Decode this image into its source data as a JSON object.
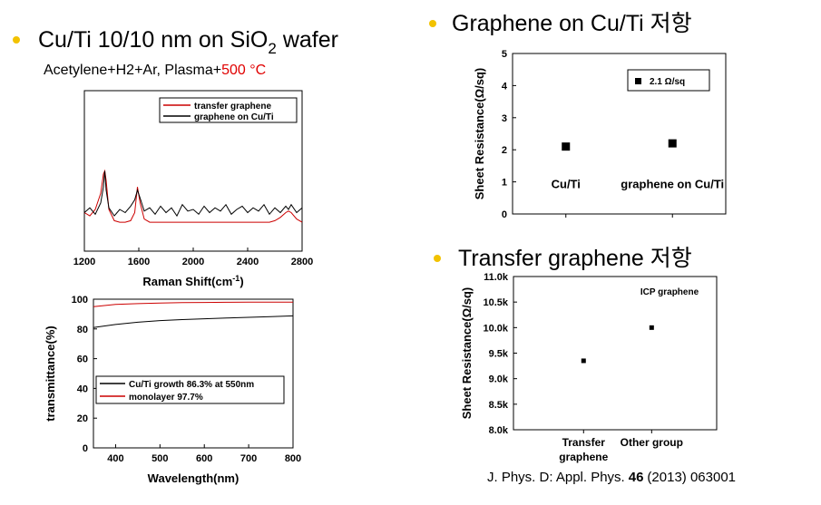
{
  "heading_1": {
    "text": "Cu/Ti 10/10 nm on SiO",
    "sub": "2",
    "tail": "wafer"
  },
  "subtitle": {
    "text": "Acetylene+H2+Ar, Plasma+",
    "highlight": "500 °C"
  },
  "heading_2": "Graphene on Cu/Ti 저항",
  "heading_3": "Transfer graphene 저항",
  "citation": {
    "text": "J. Phys. D: Appl. Phys.",
    "volume": "46",
    "tail": "(2013) 063001"
  },
  "chart_data": [
    {
      "type": "line",
      "xlabel": "Raman Shift(cm",
      "xlabel_sup": "-1",
      "xlabel_tail": ")",
      "xlim": [
        1200,
        2800
      ],
      "xticks": [
        1200,
        1600,
        2000,
        2400,
        2800
      ],
      "ylim": [
        0,
        100
      ],
      "x": [
        1200,
        1240,
        1280,
        1320,
        1340,
        1350,
        1360,
        1380,
        1420,
        1460,
        1500,
        1540,
        1570,
        1590,
        1610,
        1640,
        1680,
        1720,
        1760,
        1800,
        1840,
        1880,
        1920,
        1960,
        2000,
        2040,
        2080,
        2120,
        2160,
        2200,
        2240,
        2280,
        2320,
        2360,
        2400,
        2440,
        2480,
        2520,
        2560,
        2600,
        2640,
        2680,
        2700,
        2720,
        2760,
        2800
      ],
      "series": [
        {
          "name": "transfer graphene",
          "color": "#cc0000",
          "values": [
            24,
            22,
            26,
            36,
            48,
            50,
            44,
            26,
            19,
            18,
            18,
            19,
            24,
            40,
            30,
            20,
            18,
            18,
            18,
            18,
            18,
            18,
            18,
            18,
            18,
            18,
            18,
            18,
            18,
            18,
            18,
            18,
            18,
            18,
            18,
            18,
            18,
            18,
            18,
            19,
            21,
            24,
            25,
            24,
            20,
            18
          ]
        },
        {
          "name": "graphene on Cu/Ti",
          "color": "#000000",
          "values": [
            24,
            27,
            23,
            30,
            40,
            50,
            38,
            27,
            22,
            26,
            24,
            28,
            32,
            38,
            33,
            25,
            27,
            23,
            28,
            24,
            27,
            22,
            29,
            25,
            26,
            23,
            28,
            24,
            27,
            25,
            29,
            23,
            26,
            28,
            24,
            27,
            25,
            29,
            23,
            27,
            24,
            28,
            26,
            29,
            24,
            27
          ]
        }
      ]
    },
    {
      "type": "line",
      "xlabel": "Wavelength(nm)",
      "ylabel": "transmittance(%)",
      "xlim": [
        350,
        800
      ],
      "xticks": [
        400,
        500,
        600,
        700,
        800
      ],
      "ylim": [
        0,
        100
      ],
      "yticks": [
        0,
        20,
        40,
        60,
        80,
        100
      ],
      "x": [
        350,
        400,
        450,
        500,
        550,
        600,
        650,
        700,
        750,
        800
      ],
      "series": [
        {
          "name": "Cu/Ti growth 86.3% at 550nm",
          "color": "#000000",
          "values": [
            81,
            83,
            84.5,
            85.6,
            86.3,
            86.8,
            87.3,
            87.8,
            88.3,
            88.8
          ]
        },
        {
          "name": "monolayer 97.7%",
          "color": "#cc0000",
          "values": [
            95,
            96.5,
            97,
            97.4,
            97.7,
            97.8,
            97.9,
            98,
            98,
            98
          ]
        }
      ]
    },
    {
      "type": "scatter",
      "ylabel": "Sheet Resistance(Ω/sq)",
      "ylim": [
        0,
        5
      ],
      "yticks": [
        0,
        1,
        2,
        3,
        4,
        5
      ],
      "categories": [
        "Cu/Ti",
        "graphene on Cu/Ti"
      ],
      "series": [
        {
          "name": "2.1 Ω/sq",
          "color": "#000000",
          "values": [
            2.1,
            2.2
          ]
        }
      ]
    },
    {
      "type": "scatter",
      "ylabel": "Sheet Resistance(Ω/sq)",
      "annotation": "ICP graphene",
      "ylim": [
        8000,
        11000
      ],
      "yticks": [
        {
          "value": 8000,
          "label": "8.0k"
        },
        {
          "value": 8500,
          "label": "8.5k"
        },
        {
          "value": 9000,
          "label": "9.0k"
        },
        {
          "value": 9500,
          "label": "9.5k"
        },
        {
          "value": 10000,
          "label": "10.0k"
        },
        {
          "value": 10500,
          "label": "10.5k"
        },
        {
          "value": 11000,
          "label": "11.0k"
        }
      ],
      "categories": [
        "Transfer graphene",
        "Other group"
      ],
      "series": [
        {
          "color": "#000000",
          "values": [
            9350,
            10000
          ]
        }
      ]
    }
  ]
}
